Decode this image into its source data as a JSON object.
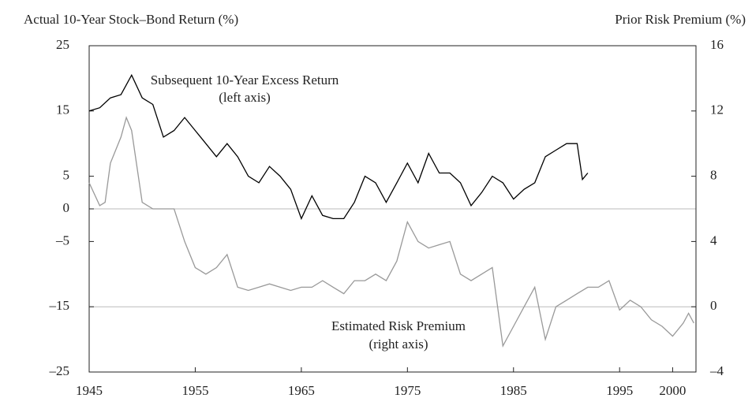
{
  "chart_data": {
    "type": "line",
    "y_label": "Actual 10-Year Stock–Bond Return (%)",
    "y2_label": "Prior Risk Premium (%)",
    "annotations": [
      "Subsequent 10-Year Excess Return",
      "(left axis)",
      "Estimated Risk Premium",
      "(right axis)"
    ],
    "xlim": [
      1945,
      2002.2
    ],
    "xticks": [
      1945,
      1955,
      1965,
      1975,
      1985,
      1995,
      2000
    ],
    "ylim": [
      -25,
      25
    ],
    "yticks": [
      {
        "value": -25,
        "label": "–25"
      },
      {
        "value": -15,
        "label": "–15"
      },
      {
        "value": -5,
        "label": "–5"
      },
      0,
      5,
      15,
      25
    ],
    "y2lim": [
      -4,
      16
    ],
    "y2ticks": [
      {
        "value": -4,
        "label": "–4"
      },
      0,
      4,
      8,
      12,
      16
    ],
    "hlines": [
      0,
      -15
    ],
    "series": [
      {
        "color": "#000000",
        "x": [
          1945,
          1946,
          1947,
          1948,
          1949,
          1950,
          1951,
          1952,
          1953,
          1954,
          1955,
          1956,
          1957,
          1958,
          1959,
          1960,
          1961,
          1962,
          1963,
          1964,
          1965,
          1966,
          1967,
          1968,
          1969,
          1970,
          1971,
          1972,
          1973,
          1974,
          1975,
          1976,
          1977,
          1978,
          1979,
          1980,
          1981,
          1982,
          1983,
          1984,
          1985,
          1986,
          1987,
          1988,
          1989,
          1990,
          1991,
          1991.5,
          1992
        ],
        "values": [
          15,
          15.5,
          17,
          17.5,
          20.5,
          17,
          16,
          11,
          12,
          14,
          12,
          10,
          8,
          10,
          8,
          5,
          4,
          6.5,
          5,
          3,
          -1.5,
          2,
          -1,
          -1.5,
          -1.5,
          1,
          5,
          4,
          1,
          4,
          7,
          4,
          8.5,
          5.5,
          5.5,
          4,
          0.5,
          2.5,
          5,
          4,
          1.5,
          3,
          4,
          8,
          9,
          10,
          10,
          4.5,
          5.5
        ]
      },
      {
        "color": "#999999",
        "axis": "y2",
        "x": [
          1945,
          1946,
          1946.5,
          1947,
          1948,
          1948.5,
          1949,
          1950,
          1951,
          1952,
          1953,
          1954,
          1955,
          1956,
          1957,
          1958,
          1959,
          1960,
          1961,
          1962,
          1963,
          1964,
          1965,
          1966,
          1967,
          1968,
          1969,
          1970,
          1971,
          1972,
          1973,
          1974,
          1975,
          1976,
          1977,
          1978,
          1979,
          1980,
          1981,
          1982,
          1983,
          1984,
          1985,
          1986,
          1987,
          1988,
          1989,
          1990,
          1991,
          1992,
          1993,
          1994,
          1995,
          1996,
          1997,
          1998,
          1999,
          2000,
          2001,
          2001.5,
          2002
        ],
        "values": [
          7.6,
          6.2,
          6.4,
          8.8,
          10.4,
          11.6,
          10.8,
          6.4,
          6,
          6,
          6,
          4,
          2.4,
          2,
          2.4,
          3.2,
          1.2,
          1,
          1.2,
          1.4,
          1.2,
          1,
          1.2,
          1.2,
          1.6,
          1.2,
          0.8,
          1.6,
          1.6,
          2,
          1.6,
          2.8,
          5.2,
          4,
          3.6,
          3.8,
          4,
          2,
          1.6,
          2,
          2.4,
          -2.4,
          -1.2,
          0,
          1.2,
          -2,
          0,
          0.4,
          0.8,
          1.2,
          1.2,
          1.6,
          -0.2,
          0.4,
          0,
          -0.8,
          -1.2,
          -1.8,
          -1,
          -0.4,
          -1
        ]
      }
    ]
  }
}
